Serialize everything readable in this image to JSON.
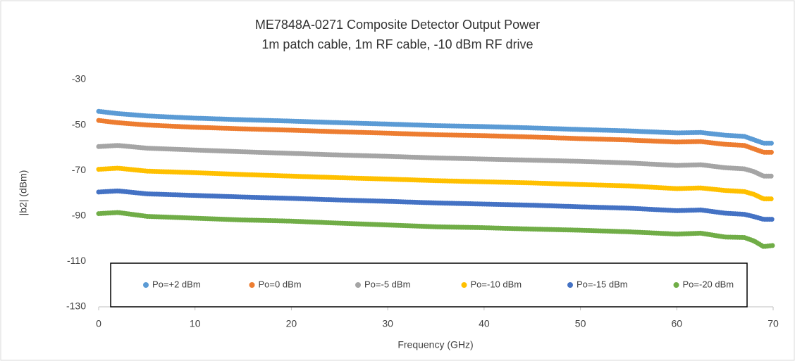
{
  "chart_data": {
    "type": "line",
    "title": "ME7848A-0271 Composite Detector Output Power",
    "subtitle": "1m patch cable, 1m RF cable, -10 dBm RF drive",
    "x_label": "Frequency (GHz)",
    "y_label": "|b2| (dBm)",
    "x": [
      0,
      2,
      5,
      10,
      15,
      20,
      25,
      30,
      35,
      40,
      45,
      50,
      55,
      60,
      62.5,
      65,
      67,
      68,
      69,
      70
    ],
    "series": [
      {
        "name": "Po=+2 dBm",
        "color": "#5b9bd5",
        "values": [
          -44,
          -45,
          -46,
          -47,
          -47.7,
          -48.3,
          -49,
          -49.6,
          -50.3,
          -50.7,
          -51.3,
          -52,
          -52.6,
          -53.5,
          -53.3,
          -54.5,
          -55,
          -56.5,
          -58,
          -58
        ]
      },
      {
        "name": "Po=0 dBm",
        "color": "#ed7d31",
        "values": [
          -48,
          -49,
          -50,
          -51,
          -51.7,
          -52.3,
          -53,
          -53.6,
          -54.3,
          -54.7,
          -55.3,
          -56,
          -56.6,
          -57.5,
          -57.3,
          -58.5,
          -59,
          -60.5,
          -62,
          -62
        ]
      },
      {
        "name": "Po=-5 dBm",
        "color": "#a5a5a5",
        "values": [
          -59.5,
          -59,
          -60.2,
          -61,
          -61.8,
          -62.5,
          -63.2,
          -63.8,
          -64.5,
          -65,
          -65.5,
          -66,
          -66.7,
          -67.8,
          -67.5,
          -68.8,
          -69.3,
          -70.5,
          -72.5,
          -72.5
        ]
      },
      {
        "name": "Po=-10 dBm",
        "color": "#ffc000",
        "values": [
          -69.5,
          -69,
          -70.3,
          -71,
          -71.8,
          -72.5,
          -73.2,
          -73.8,
          -74.5,
          -75,
          -75.5,
          -76.2,
          -76.8,
          -78,
          -77.7,
          -78.8,
          -79.3,
          -80.5,
          -82.5,
          -82.5
        ]
      },
      {
        "name": "Po=-15 dBm",
        "color": "#4472c4",
        "values": [
          -79.5,
          -79,
          -80.3,
          -81,
          -81.7,
          -82.3,
          -83,
          -83.6,
          -84.3,
          -84.8,
          -85.3,
          -86,
          -86.6,
          -87.7,
          -87.4,
          -88.8,
          -89.3,
          -90.3,
          -91.5,
          -91.5
        ]
      },
      {
        "name": "Po=-20 dBm",
        "color": "#70ad47",
        "values": [
          -89,
          -88.5,
          -90.2,
          -91,
          -91.8,
          -92.3,
          -93.2,
          -94,
          -94.8,
          -95.2,
          -95.8,
          -96.3,
          -97,
          -98,
          -97.6,
          -99.3,
          -99.5,
          -101,
          -103.5,
          -103
        ]
      }
    ],
    "xlim": [
      0,
      70
    ],
    "xticks": [
      0,
      10,
      20,
      30,
      40,
      50,
      60,
      70
    ],
    "ylim": [
      -130,
      -30
    ],
    "yticks": [
      -30,
      -50,
      -70,
      -90,
      -110,
      -130
    ],
    "grid": false,
    "legend": "bottom"
  }
}
